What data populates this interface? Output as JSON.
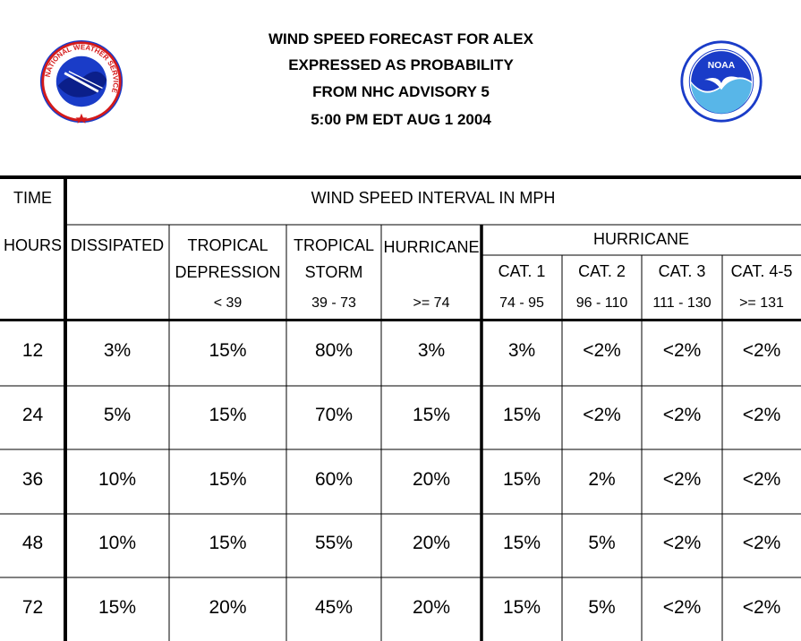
{
  "title": {
    "line1": "WIND SPEED FORECAST FOR ALEX",
    "line2": "EXPRESSED AS PROBABILITY",
    "line3": "FROM NHC ADVISORY   5",
    "line4": "5:00 PM EDT AUG 1 2004"
  },
  "logos": {
    "left": {
      "icon": "nws-logo",
      "ring_text": "NATIONAL WEATHER SERVICE"
    },
    "right": {
      "icon": "noaa-logo",
      "center_text": "NOAA"
    }
  },
  "header": {
    "time": "TIME",
    "interval": "WIND SPEED INTERVAL IN MPH",
    "hours": "HOURS",
    "dissipated": "DISSIPATED",
    "td": "TROPICAL",
    "td2": "DEPRESSION",
    "td_range": "< 39",
    "ts": "TROPICAL",
    "ts2": "STORM",
    "ts_range": "39 - 73",
    "hurricane": "HURRICANE",
    "hurricane_range": ">= 74",
    "hurricane_group": "HURRICANE",
    "cat1": "CAT. 1",
    "cat1_range": "74 - 95",
    "cat2": "CAT. 2",
    "cat2_range": "96 - 110",
    "cat3": "CAT. 3",
    "cat3_range": "111 - 130",
    "cat45": "CAT. 4-5",
    "cat45_range": ">= 131"
  },
  "rows": [
    {
      "hours": "12",
      "dissipated": "3%",
      "td": "15%",
      "ts": "80%",
      "hur": "3%",
      "cat1": "3%",
      "cat2": "<2%",
      "cat3": "<2%",
      "cat45": "<2%"
    },
    {
      "hours": "24",
      "dissipated": "5%",
      "td": "15%",
      "ts": "70%",
      "hur": "15%",
      "cat1": "15%",
      "cat2": "<2%",
      "cat3": "<2%",
      "cat45": "<2%"
    },
    {
      "hours": "36",
      "dissipated": "10%",
      "td": "15%",
      "ts": "60%",
      "hur": "20%",
      "cat1": "15%",
      "cat2": "2%",
      "cat3": "<2%",
      "cat45": "<2%"
    },
    {
      "hours": "48",
      "dissipated": "10%",
      "td": "15%",
      "ts": "55%",
      "hur": "20%",
      "cat1": "15%",
      "cat2": "5%",
      "cat3": "<2%",
      "cat45": "<2%"
    },
    {
      "hours": "72",
      "dissipated": "15%",
      "td": "20%",
      "ts": "45%",
      "hur": "20%",
      "cat1": "15%",
      "cat2": "5%",
      "cat3": "<2%",
      "cat45": "<2%"
    }
  ]
}
